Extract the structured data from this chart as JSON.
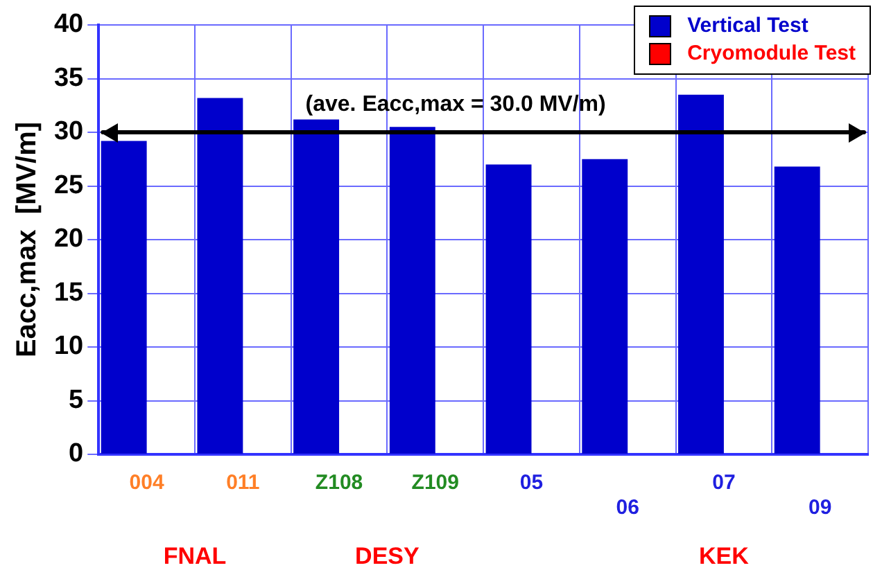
{
  "chart_data": {
    "type": "bar",
    "ylabel": "Eacc,max  [MV/m]",
    "categories": [
      "004",
      "011",
      "Z108",
      "Z109",
      "05",
      "06",
      "07",
      "09"
    ],
    "series": [
      {
        "name": "Vertical Test",
        "color": "#0000cc",
        "values": [
          29.2,
          33.2,
          31.2,
          30.5,
          27.0,
          27.5,
          33.5,
          26.8
        ]
      },
      {
        "name": "Cryomodule Test",
        "color": "#ff0000",
        "values": [
          null,
          null,
          null,
          null,
          null,
          null,
          null,
          null
        ]
      }
    ],
    "ylim": [
      0,
      40
    ],
    "yticks": [
      0,
      5,
      10,
      15,
      20,
      25,
      30,
      35,
      40
    ],
    "grid": true,
    "legend": "top right",
    "ref_lines": [
      {
        "axis": "y",
        "value": 30,
        "label": "(ave. Eacc,max = 30.0 MV/m)",
        "color": "#000000"
      }
    ],
    "annotations": [
      "FNAL",
      "DESY",
      "KEK"
    ]
  }
}
